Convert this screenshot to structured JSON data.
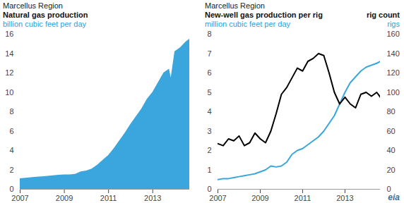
{
  "chart_data": [
    {
      "type": "area",
      "title": "Marcellus Region",
      "subtitle": "Natural gas production",
      "ylabel": "billion cubic feet per day",
      "color": "#3aa6dd",
      "x": [
        2007,
        2007.25,
        2007.5,
        2007.75,
        2008,
        2008.25,
        2008.5,
        2008.75,
        2009,
        2009.25,
        2009.5,
        2009.75,
        2010,
        2010.25,
        2010.5,
        2010.75,
        2011,
        2011.25,
        2011.5,
        2011.75,
        2012,
        2012.25,
        2012.5,
        2012.75,
        2013,
        2013.25,
        2013.5,
        2013.75,
        2013.83,
        2014,
        2014.25,
        2014.5,
        2014.67
      ],
      "values": [
        1.1,
        1.15,
        1.2,
        1.25,
        1.3,
        1.35,
        1.4,
        1.45,
        1.5,
        1.5,
        1.55,
        1.8,
        1.9,
        2.1,
        2.5,
        3.0,
        3.5,
        4.2,
        5.0,
        5.8,
        6.7,
        7.5,
        8.3,
        9.3,
        10.0,
        11.0,
        12.0,
        12.4,
        11.5,
        14.2,
        14.6,
        15.2,
        15.5
      ],
      "xlim": [
        2007,
        2014.67
      ],
      "xticks": [
        2007,
        2009,
        2011,
        2013
      ],
      "ylim": [
        0,
        16
      ],
      "yticks": [
        0,
        2,
        4,
        6,
        8,
        10,
        12,
        14,
        16
      ]
    },
    {
      "type": "line",
      "title": "Marcellus Region",
      "note": "eia",
      "x": [
        2007,
        2007.25,
        2007.5,
        2007.75,
        2008,
        2008.25,
        2008.5,
        2008.75,
        2009,
        2009.25,
        2009.5,
        2009.75,
        2010,
        2010.25,
        2010.5,
        2010.75,
        2011,
        2011.25,
        2011.5,
        2011.75,
        2012,
        2012.25,
        2012.5,
        2012.75,
        2013,
        2013.25,
        2013.5,
        2013.75,
        2014,
        2014.25,
        2014.5,
        2014.67
      ],
      "series": [
        {
          "name": "New-well gas production  per rig",
          "ylabel": "million cubic feet per day",
          "color": "#3aa6dd",
          "values": [
            0.5,
            0.55,
            0.55,
            0.6,
            0.65,
            0.7,
            0.75,
            0.8,
            0.9,
            1.0,
            1.2,
            1.15,
            1.2,
            1.4,
            1.8,
            2.0,
            2.1,
            2.3,
            2.5,
            2.7,
            3.0,
            3.4,
            3.8,
            4.4,
            5.0,
            5.5,
            5.8,
            6.1,
            6.3,
            6.4,
            6.5,
            6.6
          ]
        },
        {
          "name": "rig count",
          "ylabel": "rigs",
          "color": "#000000",
          "axis": "y2",
          "values": [
            47,
            45,
            52,
            50,
            55,
            45,
            48,
            58,
            52,
            48,
            60,
            78,
            98,
            105,
            115,
            125,
            122,
            132,
            135,
            140,
            138,
            120,
            100,
            88,
            95,
            88,
            84,
            98,
            100,
            96,
            100,
            95
          ]
        }
      ],
      "xlim": [
        2007,
        2014.67
      ],
      "xticks": [
        2007,
        2009,
        2011,
        2013
      ],
      "ylim": [
        0,
        8
      ],
      "yticks": [
        0,
        1,
        2,
        3,
        4,
        5,
        6,
        7,
        8
      ],
      "y2lim": [
        0,
        160
      ],
      "y2ticks": [
        0,
        20,
        40,
        60,
        80,
        100,
        120,
        140,
        160
      ]
    }
  ]
}
